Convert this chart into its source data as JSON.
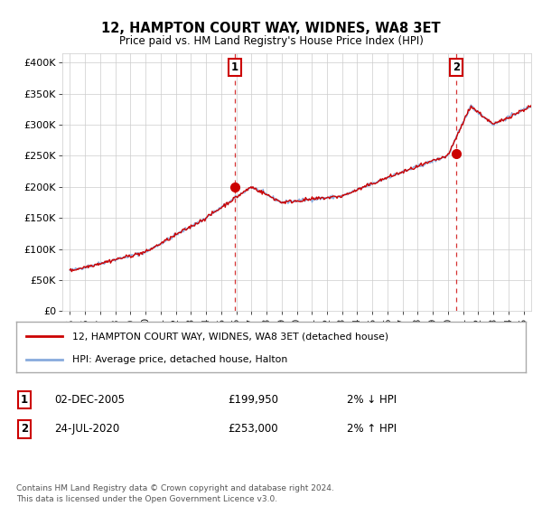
{
  "title": "12, HAMPTON COURT WAY, WIDNES, WA8 3ET",
  "subtitle": "Price paid vs. HM Land Registry's House Price Index (HPI)",
  "ylabel_ticks": [
    "£0",
    "£50K",
    "£100K",
    "£150K",
    "£200K",
    "£250K",
    "£300K",
    "£350K",
    "£400K"
  ],
  "ytick_values": [
    0,
    50000,
    100000,
    150000,
    200000,
    250000,
    300000,
    350000,
    400000
  ],
  "ylim": [
    0,
    415000
  ],
  "xlim_start": 1994.5,
  "xlim_end": 2025.5,
  "purchase1": {
    "date_num": 2005.92,
    "price": 199950,
    "label": "1"
  },
  "purchase2": {
    "date_num": 2020.56,
    "price": 253000,
    "label": "2"
  },
  "dashed_color": "#cc0000",
  "property_color": "#cc0000",
  "hpi_color": "#88aadd",
  "annotation_box_color": "#cc0000",
  "legend_property_label": "12, HAMPTON COURT WAY, WIDNES, WA8 3ET (detached house)",
  "legend_hpi_label": "HPI: Average price, detached house, Halton",
  "table_rows": [
    {
      "num": "1",
      "date": "02-DEC-2005",
      "price": "£199,950",
      "hpi": "2% ↓ HPI"
    },
    {
      "num": "2",
      "date": "24-JUL-2020",
      "price": "£253,000",
      "hpi": "2% ↑ HPI"
    }
  ],
  "footer": "Contains HM Land Registry data © Crown copyright and database right 2024.\nThis data is licensed under the Open Government Licence v3.0.",
  "background_color": "#ffffff",
  "grid_color": "#cccccc",
  "xtick_years": [
    1995,
    1996,
    1997,
    1998,
    1999,
    2000,
    2001,
    2002,
    2003,
    2004,
    2005,
    2006,
    2007,
    2008,
    2009,
    2010,
    2011,
    2012,
    2013,
    2014,
    2015,
    2016,
    2017,
    2018,
    2019,
    2020,
    2021,
    2022,
    2023,
    2024,
    2025
  ]
}
